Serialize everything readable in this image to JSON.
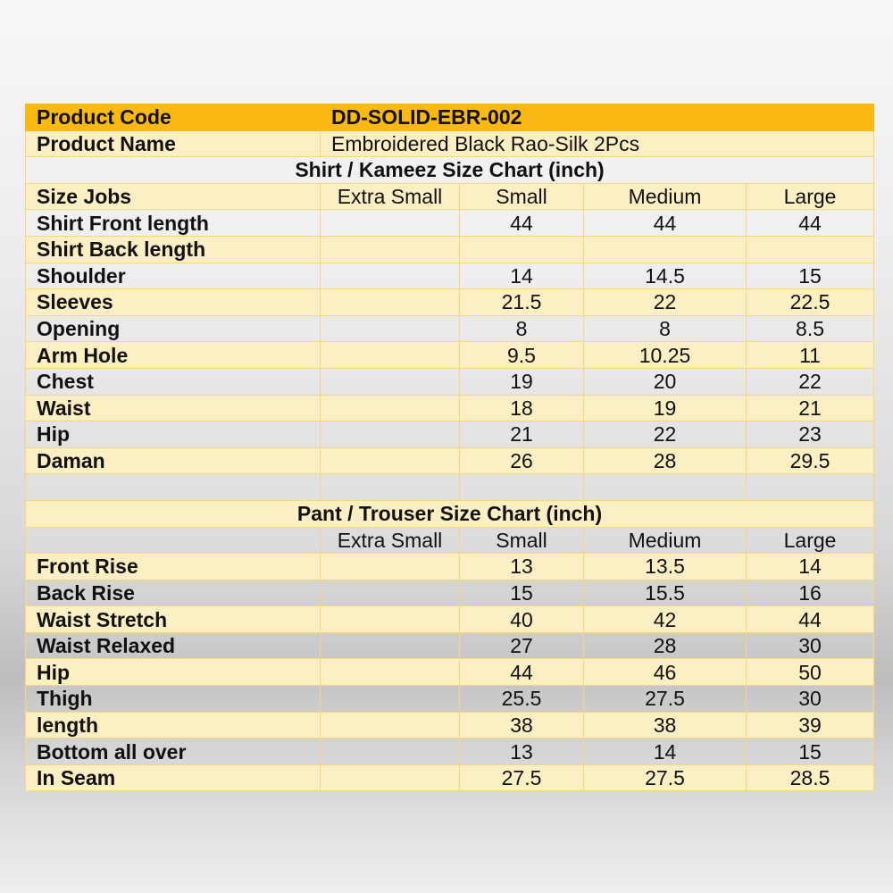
{
  "product_code": {
    "label": "Product Code",
    "value": "DD-SOLID-EBR-002"
  },
  "product_name": {
    "label": "Product Name",
    "value": "Embroidered Black Rao-Silk 2Pcs"
  },
  "shirt": {
    "title": "Shirt / Kameez Size Chart (inch)",
    "header": [
      "Size Jobs",
      "Extra Small",
      "Small",
      "Medium",
      "Large"
    ],
    "rows": [
      [
        "Shirt Front length",
        "",
        "44",
        "44",
        "44"
      ],
      [
        "Shirt Back length",
        "",
        "",
        "",
        ""
      ],
      [
        "Shoulder",
        "",
        "14",
        "14.5",
        "15"
      ],
      [
        "Sleeves",
        "",
        "21.5",
        "22",
        "22.5"
      ],
      [
        "Opening",
        "",
        "8",
        "8",
        "8.5"
      ],
      [
        "Arm Hole",
        "",
        "9.5",
        "10.25",
        "11"
      ],
      [
        "Chest",
        "",
        "19",
        "20",
        "22"
      ],
      [
        "Waist",
        "",
        "18",
        "19",
        "21"
      ],
      [
        "Hip",
        "",
        "21",
        "22",
        "23"
      ],
      [
        "Daman",
        "",
        "26",
        "28",
        "29.5"
      ]
    ]
  },
  "pant": {
    "title": "Pant / Trouser Size Chart (inch)",
    "header": [
      "",
      "Extra Small",
      "Small",
      "Medium",
      "Large"
    ],
    "rows": [
      [
        "Front Rise",
        "",
        "13",
        "13.5",
        "14"
      ],
      [
        "Back Rise",
        "",
        "15",
        "15.5",
        "16"
      ],
      [
        "Waist Stretch",
        "",
        "40",
        "42",
        "44"
      ],
      [
        "Waist Relaxed",
        "",
        "27",
        "28",
        "30"
      ],
      [
        "Hip",
        "",
        "44",
        "46",
        "50"
      ],
      [
        "Thigh",
        "",
        "25.5",
        "27.5",
        "30"
      ],
      [
        "length",
        "",
        "38",
        "38",
        "39"
      ],
      [
        "Bottom all over",
        "",
        "13",
        "14",
        "15"
      ],
      [
        "In Seam",
        "",
        "27.5",
        "27.5",
        "28.5"
      ]
    ]
  },
  "colors": {
    "header": "#fdb913",
    "cream": "#fdefc4",
    "border": "#f7d77a"
  }
}
